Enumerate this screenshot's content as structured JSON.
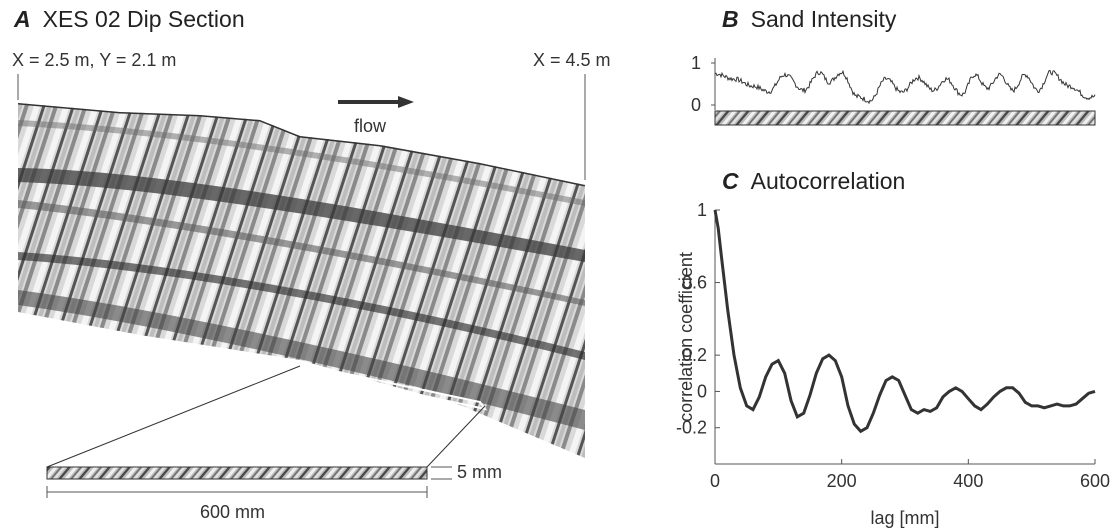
{
  "panel_a": {
    "letter": "A",
    "title": "XES 02 Dip Section",
    "left_coord": "X = 2.5 m, Y = 2.1 m",
    "right_coord": "X = 4.5 m",
    "flow_label": "flow",
    "scale_height_label": "5 mm",
    "scale_length_label": "600 mm"
  },
  "panel_b": {
    "letter": "B",
    "title": "Sand Intensity",
    "y_ticks": [
      "1",
      "0"
    ]
  },
  "panel_c": {
    "letter": "C",
    "title": "Autocorrelation"
  },
  "chart_data": [
    {
      "type": "line",
      "title": "Sand Intensity",
      "ylim": [
        0,
        1
      ],
      "yticks": [
        0,
        1
      ],
      "xlim": [
        0,
        600
      ],
      "series": [
        {
          "values_description_only_shape": true,
          "x": [
            0,
            30,
            60,
            85,
            110,
            140,
            165,
            180,
            200,
            225,
            245,
            270,
            295,
            320,
            345,
            365,
            390,
            410,
            430,
            450,
            470,
            490,
            510,
            530,
            560,
            590,
            600
          ],
          "y": [
            0.75,
            0.62,
            0.45,
            0.32,
            0.72,
            0.35,
            0.78,
            0.55,
            0.78,
            0.2,
            0.1,
            0.62,
            0.3,
            0.65,
            0.35,
            0.62,
            0.25,
            0.72,
            0.4,
            0.72,
            0.35,
            0.72,
            0.35,
            0.78,
            0.45,
            0.18,
            0.2
          ]
        }
      ]
    },
    {
      "type": "line",
      "title": "Autocorrelation",
      "xlabel": "lag [mm]",
      "ylabel": "correlation coefficient",
      "xlim": [
        0,
        600
      ],
      "ylim": [
        -0.4,
        1
      ],
      "xticks": [
        0,
        200,
        400,
        600
      ],
      "yticks": [
        -0.2,
        0,
        0.2,
        0.6,
        1
      ],
      "ytick_labels": [
        "-0.2",
        "0",
        "0.2",
        "0.6",
        "1"
      ],
      "series": [
        {
          "x": [
            0,
            5,
            10,
            15,
            20,
            30,
            40,
            50,
            60,
            70,
            80,
            90,
            100,
            110,
            120,
            130,
            140,
            150,
            160,
            170,
            180,
            190,
            200,
            210,
            220,
            230,
            240,
            250,
            260,
            270,
            280,
            290,
            300,
            310,
            320,
            330,
            340,
            350,
            360,
            370,
            380,
            390,
            400,
            410,
            420,
            430,
            440,
            450,
            460,
            470,
            480,
            490,
            500,
            510,
            520,
            530,
            540,
            550,
            560,
            570,
            580,
            590,
            600
          ],
          "y": [
            1.0,
            0.9,
            0.75,
            0.6,
            0.45,
            0.2,
            0.02,
            -0.08,
            -0.1,
            -0.03,
            0.08,
            0.15,
            0.17,
            0.1,
            -0.05,
            -0.14,
            -0.12,
            -0.02,
            0.1,
            0.18,
            0.2,
            0.17,
            0.08,
            -0.08,
            -0.18,
            -0.22,
            -0.2,
            -0.12,
            -0.02,
            0.06,
            0.08,
            0.06,
            -0.02,
            -0.1,
            -0.12,
            -0.1,
            -0.11,
            -0.09,
            -0.03,
            0.0,
            0.02,
            0.0,
            -0.04,
            -0.08,
            -0.1,
            -0.07,
            -0.03,
            0.0,
            0.02,
            0.02,
            -0.01,
            -0.06,
            -0.08,
            -0.08,
            -0.09,
            -0.08,
            -0.07,
            -0.08,
            -0.08,
            -0.07,
            -0.04,
            -0.01,
            0.0
          ]
        }
      ]
    }
  ]
}
